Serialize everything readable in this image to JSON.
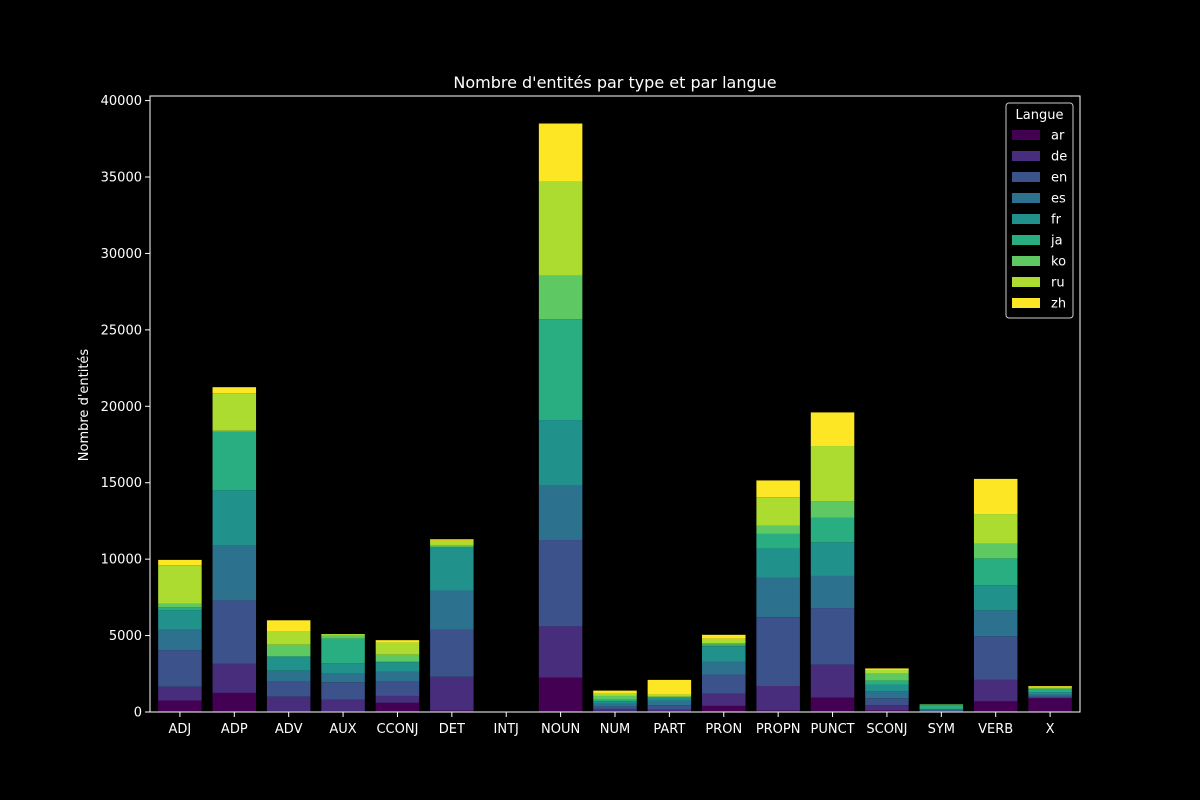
{
  "chart_data": {
    "type": "bar",
    "stacked": true,
    "title": "Nombre d'entités par type et par langue",
    "xlabel": "",
    "ylabel": "Nombre d'entités",
    "ylim": [
      0,
      40300
    ],
    "yticks": [
      0,
      5000,
      10000,
      15000,
      20000,
      25000,
      30000,
      35000,
      40000
    ],
    "grid": false,
    "legend": {
      "title": "Langue",
      "position": "top-right"
    },
    "categories": [
      "ADJ",
      "ADP",
      "ADV",
      "AUX",
      "CCONJ",
      "DET",
      "INTJ",
      "NOUN",
      "NUM",
      "PART",
      "PRON",
      "PROPN",
      "PUNCT",
      "SCONJ",
      "SYM",
      "VERB",
      "X"
    ],
    "series": [
      {
        "name": "ar",
        "color": "#440154",
        "values": [
          750,
          1250,
          50,
          50,
          600,
          100,
          0,
          2250,
          50,
          50,
          400,
          100,
          950,
          100,
          0,
          700,
          900
        ]
      },
      {
        "name": "de",
        "color": "#472d7b",
        "values": [
          900,
          1900,
          950,
          750,
          450,
          2200,
          0,
          3350,
          150,
          100,
          800,
          1600,
          2150,
          350,
          50,
          1400,
          50
        ]
      },
      {
        "name": "en",
        "color": "#3b528b",
        "values": [
          2400,
          4150,
          1000,
          1150,
          950,
          3100,
          0,
          5650,
          150,
          300,
          1250,
          4500,
          3700,
          450,
          50,
          2850,
          100
        ]
      },
      {
        "name": "es",
        "color": "#2c728e",
        "values": [
          1350,
          3600,
          700,
          550,
          650,
          2550,
          0,
          3550,
          200,
          300,
          850,
          2600,
          2100,
          450,
          50,
          1700,
          100
        ]
      },
      {
        "name": "fr",
        "color": "#21918c",
        "values": [
          1250,
          3600,
          850,
          700,
          600,
          2800,
          0,
          4300,
          150,
          200,
          1000,
          1900,
          2200,
          450,
          50,
          1650,
          150
        ]
      },
      {
        "name": "ja",
        "color": "#28ae80",
        "values": [
          200,
          3850,
          100,
          1600,
          50,
          50,
          0,
          6600,
          100,
          50,
          100,
          950,
          1600,
          250,
          250,
          1750,
          200
        ]
      },
      {
        "name": "ko",
        "color": "#5ec962",
        "values": [
          250,
          50,
          750,
          200,
          450,
          100,
          0,
          2850,
          250,
          0,
          100,
          550,
          1100,
          450,
          50,
          950,
          50
        ]
      },
      {
        "name": "ru",
        "color": "#addc30",
        "values": [
          2500,
          2450,
          850,
          100,
          800,
          300,
          0,
          6150,
          150,
          150,
          300,
          1850,
          3600,
          250,
          0,
          1950,
          100
        ]
      },
      {
        "name": "zh",
        "color": "#fde725",
        "values": [
          350,
          400,
          750,
          0,
          150,
          100,
          0,
          3800,
          200,
          950,
          250,
          1100,
          2200,
          100,
          0,
          2300,
          50
        ]
      }
    ]
  }
}
